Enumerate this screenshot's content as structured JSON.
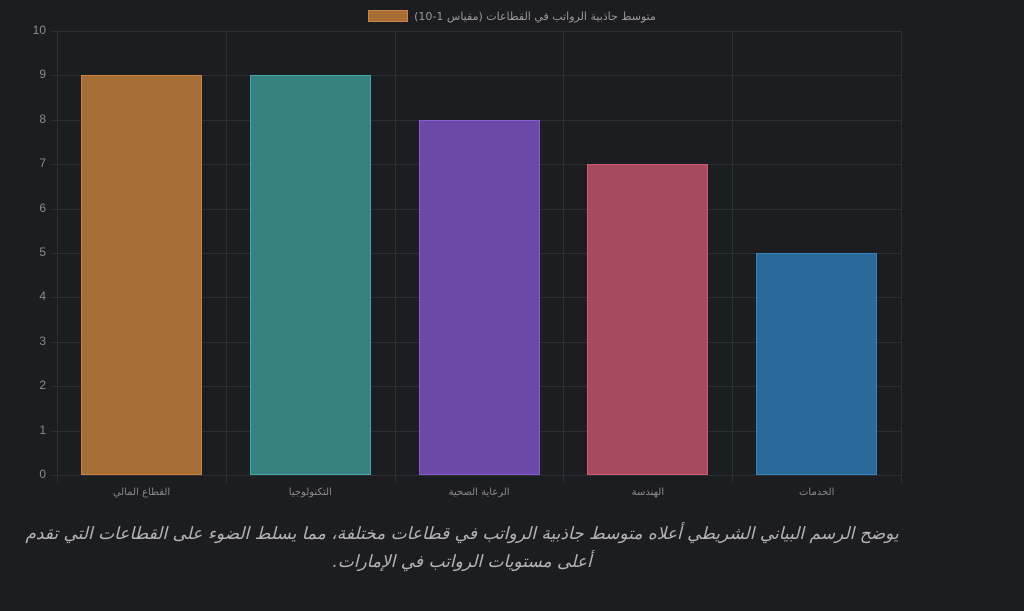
{
  "chart_data": {
    "type": "bar",
    "title": "",
    "legend": [
      "متوسط جاذبية الرواتب في القطاعات (مقياس 1-10)"
    ],
    "legend_position": "top",
    "categories": [
      "القطاع المالي",
      "التكنولوجيا",
      "الرعاية الصحية",
      "الهندسة",
      "الخدمات"
    ],
    "series": [
      {
        "name": "متوسط جاذبية الرواتب في القطاعات (مقياس 1-10)",
        "values": [
          9,
          9,
          8,
          7,
          5
        ]
      }
    ],
    "bar_colors": [
      "#a66e35",
      "#368280",
      "#6a4aa6",
      "#a64a5e",
      "#2a6a9a"
    ],
    "bar_border_colors": [
      "#c88440",
      "#46a8a4",
      "#8a5ad0",
      "#d05a74",
      "#3684c0"
    ],
    "xlabel": "",
    "ylabel": "",
    "ylim": [
      0,
      10
    ],
    "yticks": [
      "0",
      "1",
      "2",
      "3",
      "4",
      "5",
      "6",
      "7",
      "8",
      "9",
      "10"
    ],
    "grid": true
  },
  "legend": {
    "label": "متوسط جاذبية الرواتب في القطاعات (مقياس 1-10)"
  },
  "caption": "يوضح الرسم البياني الشريطي أعلاه متوسط جاذبية الرواتب في قطاعات مختلفة، مما يسلط الضوء على القطاعات التي تقدم أعلى مستويات الرواتب في الإمارات."
}
